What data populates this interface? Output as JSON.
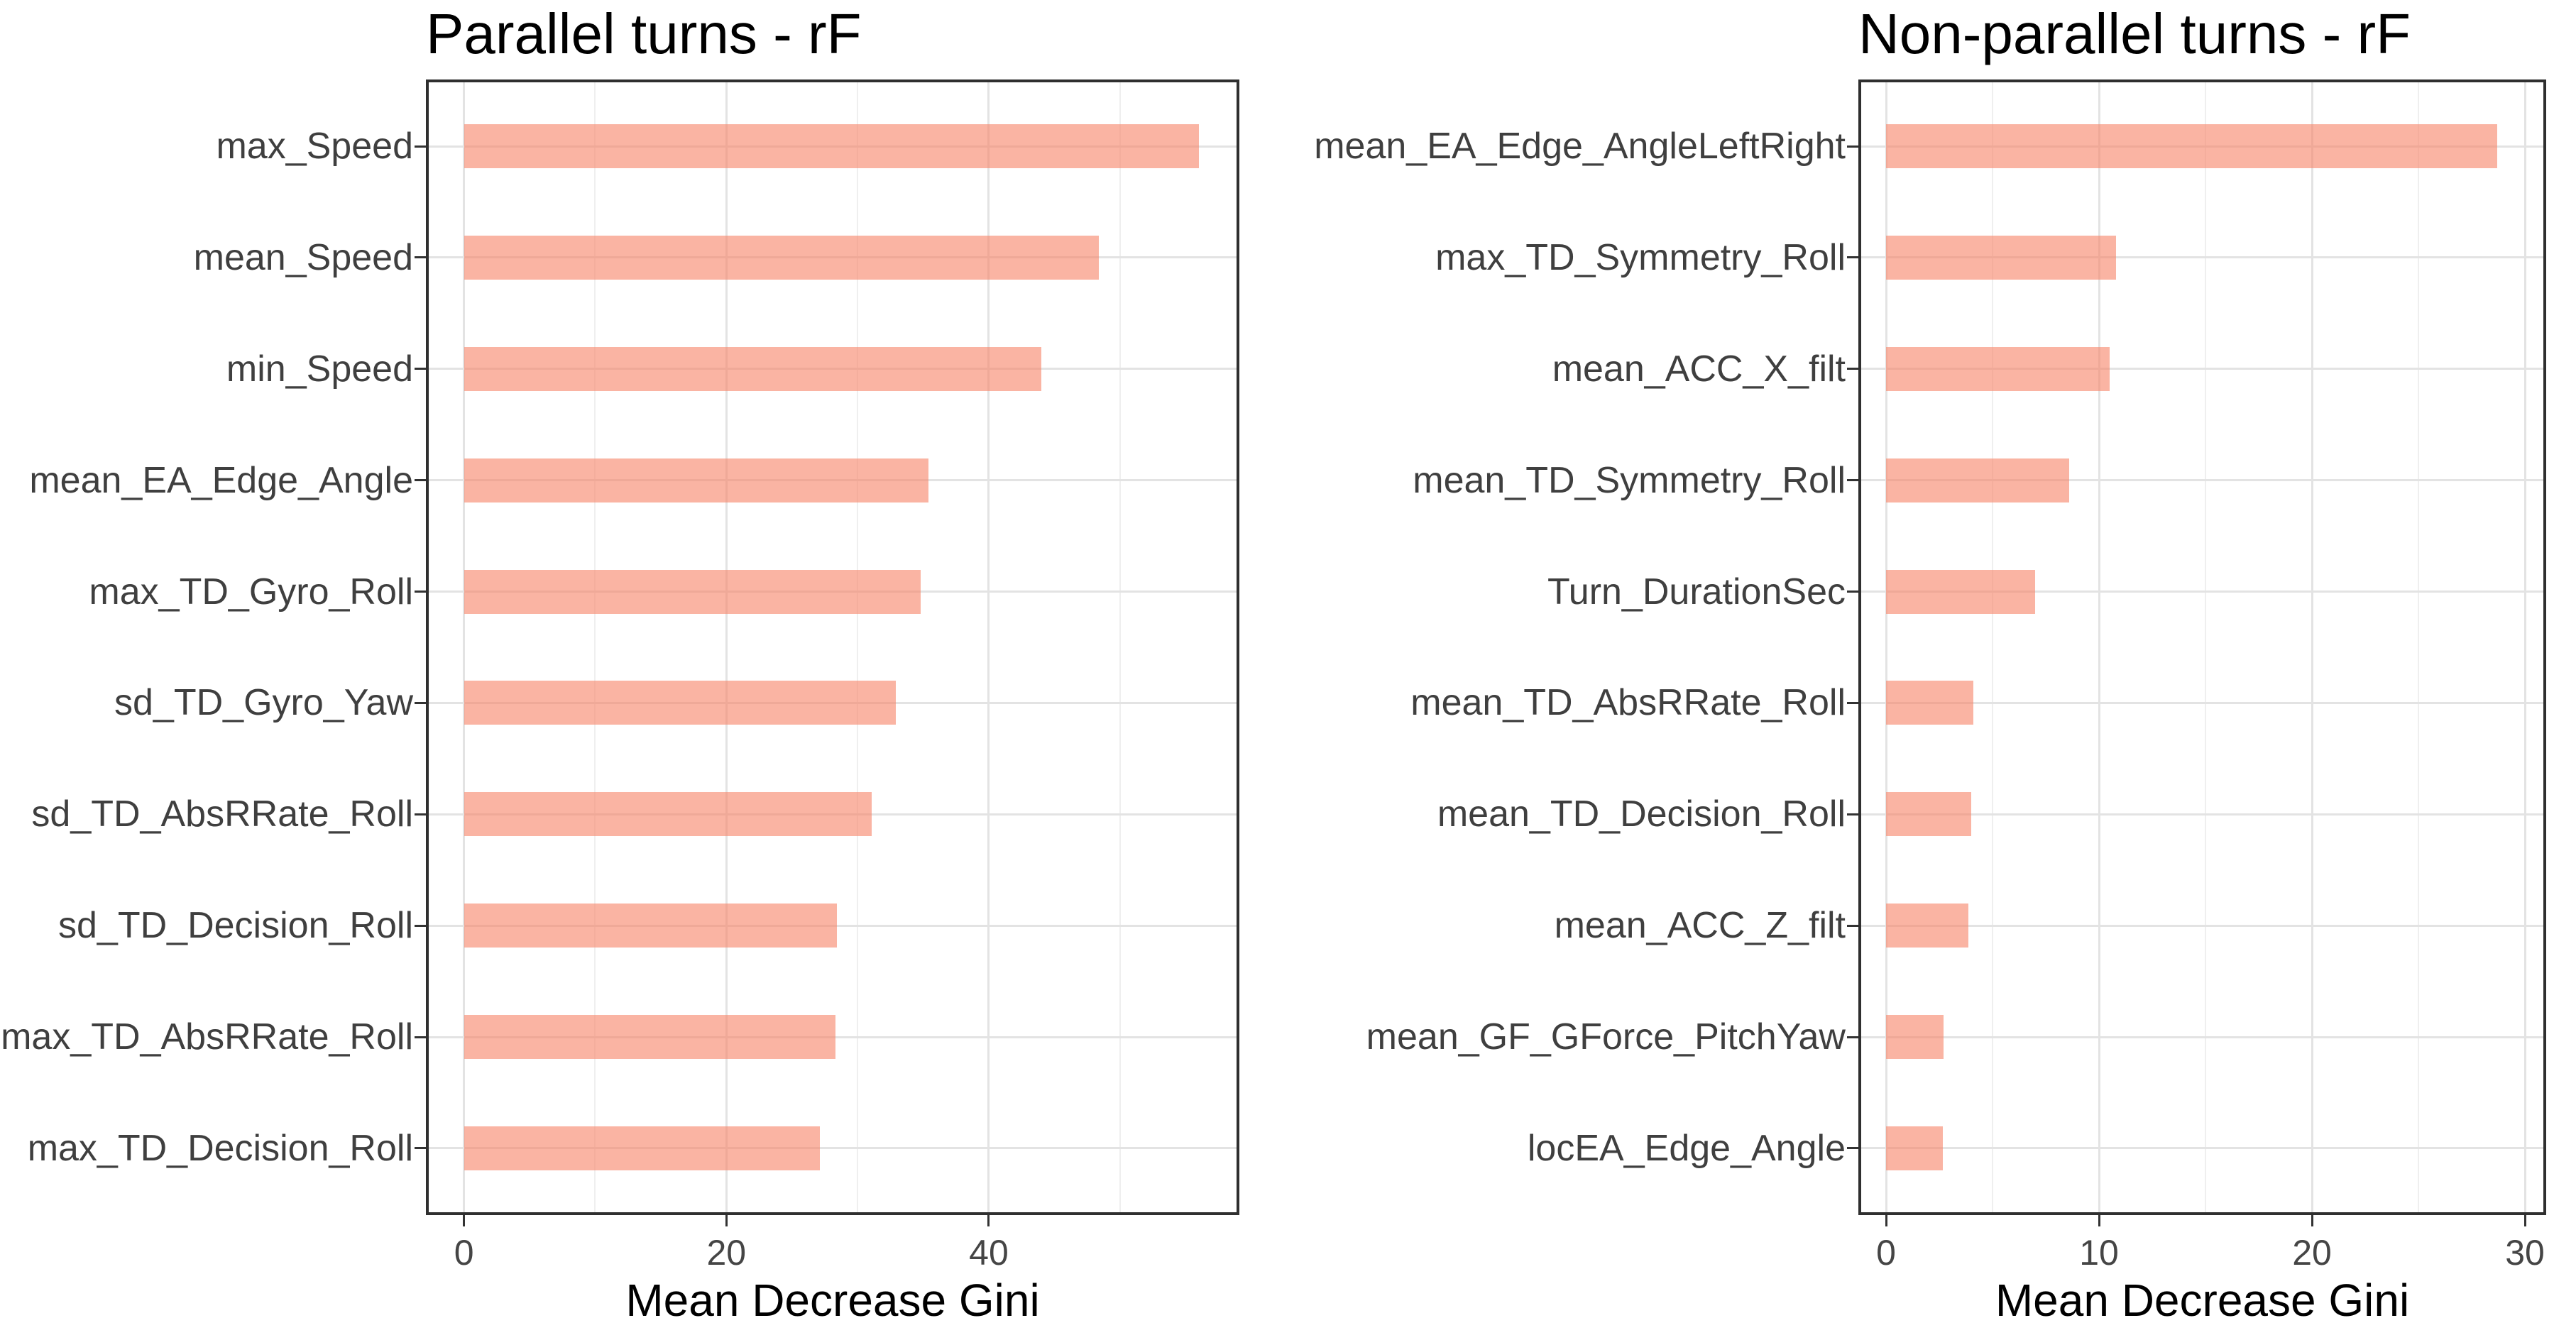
{
  "figure": {
    "kind": "side-by-side random forest variable importance plots",
    "background": "#ffffff"
  },
  "colors": {
    "bar_fill": "rgba(247,134,106,0.62)",
    "bar_fill_on_white": "#fab3a0",
    "grid_major": "#e3e3e3",
    "grid_minor": "#efefef",
    "panel_border": "#2f2f2f",
    "tick_mark": "#333333",
    "axis_text": "#3f3f3f",
    "title_text": "#000000"
  },
  "chart_data": [
    {
      "type": "bar",
      "orientation": "horizontal",
      "title": "Parallel turns - rF",
      "xlabel": "Mean Decrease Gini",
      "ylabel": "",
      "legend": "none",
      "grid": true,
      "categories": [
        "max_Speed",
        "mean_Speed",
        "min_Speed",
        "mean_EA_Edge_Angle",
        "max_TD_Gyro_Roll",
        "sd_TD_Gyro_Yaw",
        "sd_TD_AbsRRate_Roll",
        "sd_TD_Decision_Roll",
        "max_TD_AbsRRate_Roll",
        "max_TD_Decision_Roll"
      ],
      "values": [
        56.0,
        48.4,
        44.0,
        35.4,
        34.8,
        32.9,
        31.1,
        28.4,
        28.3,
        27.1
      ],
      "x_ticks": [
        0,
        20,
        40
      ],
      "x_minor_ticks": [
        10,
        30,
        50
      ],
      "xlim": [
        -2.9,
        59.1
      ]
    },
    {
      "type": "bar",
      "orientation": "horizontal",
      "title": "Non-parallel turns - rF",
      "xlabel": "Mean Decrease Gini",
      "ylabel": "",
      "legend": "none",
      "grid": true,
      "categories": [
        "mean_EA_Edge_AngleLeftRight",
        "max_TD_Symmetry_Roll",
        "mean_ACC_X_filt",
        "mean_TD_Symmetry_Roll",
        "Turn_DurationSec",
        "mean_TD_AbsRRate_Roll",
        "mean_TD_Decision_Roll",
        "mean_ACC_Z_filt",
        "mean_GF_GForce_PitchYaw",
        "locEA_Edge_Angle"
      ],
      "values": [
        28.7,
        10.8,
        10.5,
        8.6,
        7.0,
        4.1,
        4.0,
        3.85,
        2.7,
        2.65
      ],
      "x_ticks": [
        0,
        10,
        20,
        30
      ],
      "x_minor_ticks": [
        5,
        15,
        25
      ],
      "xlim": [
        -1.3,
        31.0
      ]
    }
  ]
}
